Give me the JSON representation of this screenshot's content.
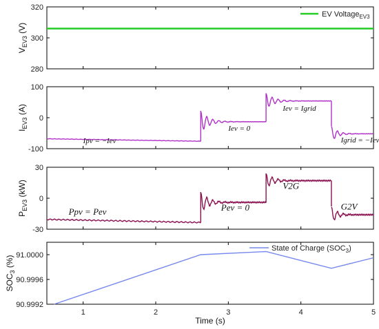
{
  "colors": {
    "voltage": "#22cc22",
    "current": "#b030c8",
    "power": "#8a1050",
    "soc": "#7788ee",
    "axis": "#000000"
  },
  "chart_data": [
    {
      "type": "line",
      "ylabel": "V",
      "ylabel_sub": "EV3",
      "ylabel_unit": " (V)",
      "xlim": [
        0.5,
        5
      ],
      "ylim": [
        280,
        320
      ],
      "yticks": [
        "280",
        "300",
        "320"
      ],
      "legend": {
        "label": "EV Voltage",
        "sub": "EV3",
        "placement": "top-right"
      },
      "series": [
        {
          "name": "EV Voltage EV3",
          "x": [
            0.5,
            5
          ],
          "y": [
            306,
            306
          ]
        }
      ]
    },
    {
      "type": "line",
      "ylabel": "I",
      "ylabel_sub": "EV3",
      "ylabel_unit": " (A)",
      "xlim": [
        0.5,
        5
      ],
      "ylim": [
        -100,
        100
      ],
      "yticks": [
        "-100",
        "0",
        "100"
      ],
      "segments": [
        {
          "x0": 0.5,
          "y0": -68,
          "x1": 2.62,
          "y1": -76,
          "osc_amp": 0,
          "osc_decay": 1
        },
        {
          "x0": 2.62,
          "y0": -13,
          "x1": 3.52,
          "y1": -13,
          "osc_amp": 35,
          "osc_decay": 9
        },
        {
          "x0": 3.52,
          "y0": 54,
          "x1": 4.42,
          "y1": 54,
          "osc_amp": 25,
          "osc_decay": 9
        },
        {
          "x0": 4.42,
          "y0": -52,
          "x1": 5.0,
          "y1": -52,
          "osc_amp": 25,
          "osc_decay": 12
        }
      ],
      "annotations": [
        {
          "text": "Ipv = −Iev",
          "x": 1.0,
          "y": -82
        },
        {
          "text": "Iev = 0",
          "x": 3.0,
          "y": -42
        },
        {
          "text": "Iev = Igrid",
          "x": 3.75,
          "y": 22
        },
        {
          "text": "Igrid = −Iev",
          "x": 4.55,
          "y": -80
        }
      ]
    },
    {
      "type": "line",
      "ylabel": "P",
      "ylabel_sub": "EV3",
      "ylabel_unit": " (kW)",
      "xlim": [
        0.5,
        5
      ],
      "ylim": [
        -30,
        30
      ],
      "yticks": [
        "-30",
        "0",
        "30"
      ],
      "segments": [
        {
          "x0": 0.5,
          "y0": -20.5,
          "x1": 2.62,
          "y1": -23.5,
          "osc_amp": 0,
          "osc_decay": 1
        },
        {
          "x0": 2.62,
          "y0": -4,
          "x1": 3.52,
          "y1": -4,
          "osc_amp": 10,
          "osc_decay": 9
        },
        {
          "x0": 3.52,
          "y0": 17,
          "x1": 4.42,
          "y1": 17,
          "osc_amp": 7,
          "osc_decay": 9
        },
        {
          "x0": 4.42,
          "y0": -16,
          "x1": 5.0,
          "y1": -16,
          "osc_amp": 8,
          "osc_decay": 12
        }
      ],
      "annotations": [
        {
          "text": "Ppv = Pev",
          "x": 0.8,
          "y": -16
        },
        {
          "text": "Pev = 0",
          "x": 2.9,
          "y": -12
        },
        {
          "text": "V2G",
          "x": 3.75,
          "y": 9
        },
        {
          "text": "G2V",
          "x": 4.55,
          "y": -11
        }
      ]
    },
    {
      "type": "line",
      "ylabel": "SOC",
      "ylabel_sub": "3",
      "ylabel_unit": " (%)",
      "xlabel": "Time (s)",
      "xlim": [
        0.5,
        5
      ],
      "ylim": [
        90.9992,
        91.0002
      ],
      "yticks": [
        "90.9992",
        "90.9996",
        "91.0000"
      ],
      "xticks": [
        "1",
        "2",
        "3",
        "4",
        "5"
      ],
      "legend": {
        "label": "State of Charge (SOC",
        "sub": "3",
        "tail": ")",
        "placement": "top-right"
      },
      "series": [
        {
          "name": "State of Charge (SOC3)",
          "x": [
            0.6,
            2.62,
            3.52,
            4.42,
            5.0
          ],
          "y": [
            90.9992,
            91.0,
            91.00005,
            90.99978,
            90.99995
          ]
        }
      ]
    }
  ]
}
